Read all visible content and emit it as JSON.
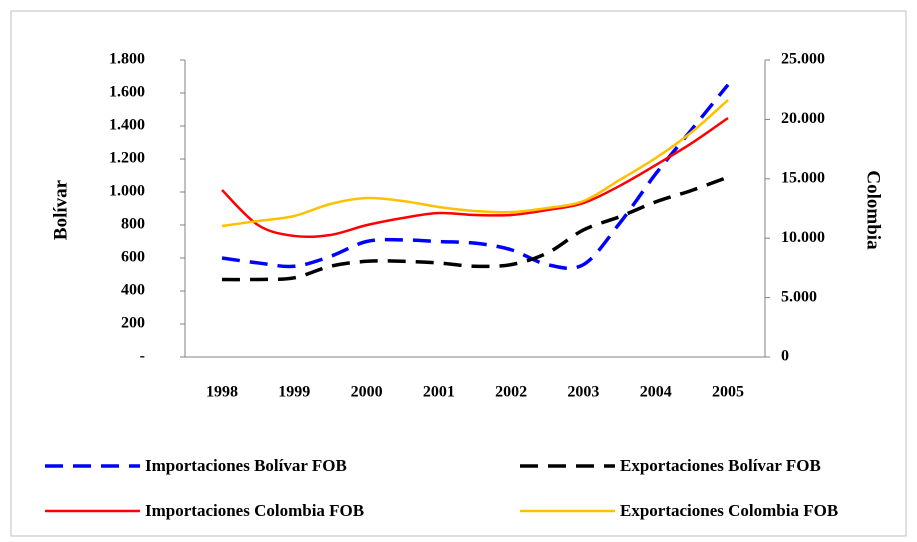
{
  "chart_data": {
    "type": "line",
    "y_label": "Bolívar",
    "y2_label": "Colombia",
    "categories": [
      "1998",
      null,
      "1999",
      null,
      "2000",
      null,
      "2001",
      null,
      "2002",
      null,
      "2003",
      null,
      "2004",
      null,
      "2005"
    ],
    "ylim": [
      0,
      1800
    ],
    "yticks": [
      {
        "value": 0,
        "label": "-"
      },
      200,
      400,
      600,
      800,
      {
        "value": 1000,
        "label": "1.000"
      },
      {
        "value": 1200,
        "label": "1.200"
      },
      {
        "value": 1400,
        "label": "1.400"
      },
      {
        "value": 1600,
        "label": "1.600"
      },
      {
        "value": 1800,
        "label": "1.800"
      }
    ],
    "y2lim": [
      0,
      25000
    ],
    "y2ticks": [
      0,
      {
        "value": 5000,
        "label": "5.000"
      },
      {
        "value": 10000,
        "label": "10.000"
      },
      {
        "value": 15000,
        "label": "15.000"
      },
      {
        "value": 20000,
        "label": "20.000"
      },
      {
        "value": 25000,
        "label": "25.000"
      }
    ],
    "grid": false,
    "series": [
      {
        "name": "Importaciones Bolívar FOB",
        "color": "#0000ff",
        "dashed": true,
        "values": [
          600,
          570,
          550,
          610,
          700,
          710,
          700,
          690,
          650,
          560,
          560,
          810,
          1110,
          1380,
          1650
        ]
      },
      {
        "name": "Exportaciones Bolívar FOB",
        "color": "#000000",
        "dashed": true,
        "values": [
          470,
          470,
          480,
          550,
          580,
          580,
          570,
          550,
          560,
          630,
          770,
          850,
          940,
          1010,
          1090
        ]
      },
      {
        "name": "Importaciones Colombia FOB",
        "color": "#ff0000",
        "dashed": false,
        "axis": "y2",
        "values": [
          14060,
          11100,
          10190,
          10270,
          11100,
          11700,
          12120,
          11950,
          11950,
          12370,
          12960,
          14400,
          16160,
          18010,
          20120
        ]
      },
      {
        "name": "Exportaciones Colombia FOB",
        "color": "#ffc000",
        "dashed": false,
        "axis": "y2",
        "values": [
          11030,
          11450,
          11870,
          12880,
          13380,
          13130,
          12630,
          12290,
          12200,
          12540,
          13130,
          14900,
          16750,
          18940,
          21630
        ]
      }
    ]
  }
}
